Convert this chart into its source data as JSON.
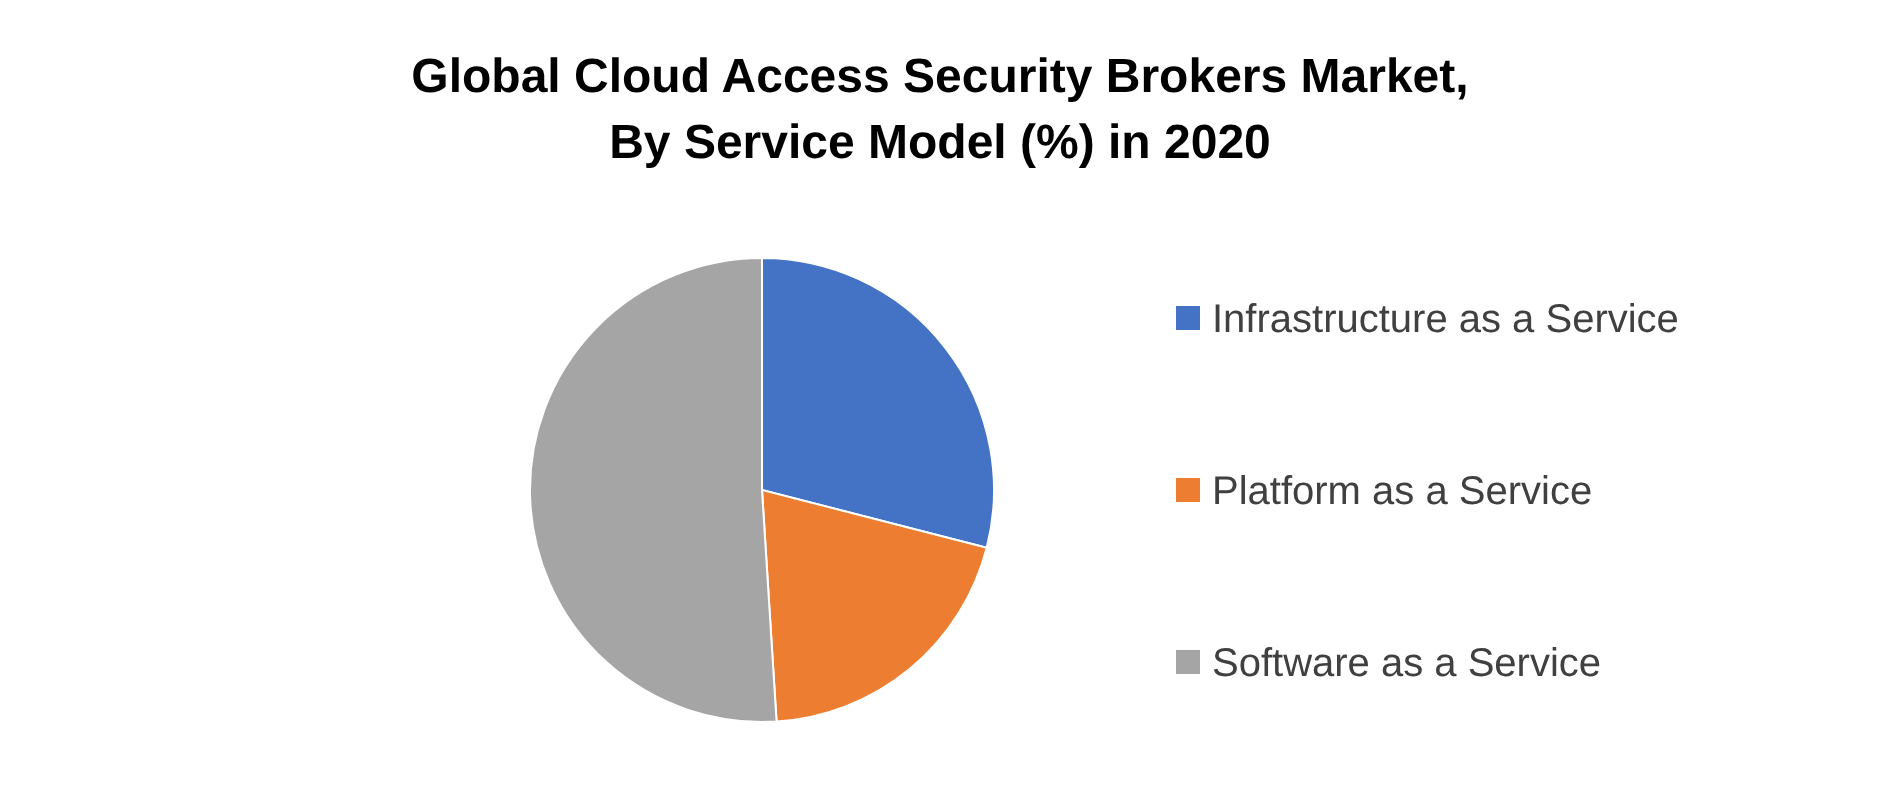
{
  "chart_data": {
    "type": "pie",
    "title": "Global Cloud Access Security Brokers Market, By Service Model (%) in 2020",
    "categories": [
      "Infrastructure as a Service",
      "Platform as a Service",
      "Software as a Service"
    ],
    "values": [
      29,
      20,
      51
    ],
    "colors": [
      "#4472c4",
      "#ed7d31",
      "#a5a5a5"
    ],
    "legend": "right"
  }
}
